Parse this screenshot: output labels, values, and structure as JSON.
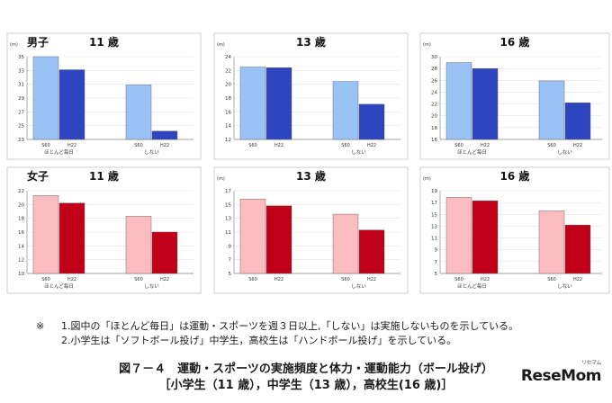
{
  "chart_data": [
    {
      "type": "bar",
      "title": "男子",
      "subtitle": "11 歳",
      "unit": "(m)",
      "yticks": [
        23,
        25,
        27,
        29,
        31,
        33,
        35
      ],
      "ylim": [
        23,
        35
      ],
      "groups": [
        {
          "label": "ほとんど毎日",
          "bars": [
            {
              "name": "S60",
              "value": 35.0
            },
            {
              "name": "H22",
              "value": 33.1
            }
          ]
        },
        {
          "label": "しない",
          "bars": [
            {
              "name": "S60",
              "value": 30.9
            },
            {
              "name": "H22",
              "value": 24.2
            }
          ]
        }
      ],
      "colors": [
        "#99c3f5",
        "#2d46c0"
      ]
    },
    {
      "type": "bar",
      "title": "",
      "subtitle": "13 歳",
      "unit": "(m)",
      "yticks": [
        12,
        14,
        16,
        18,
        20,
        22,
        24
      ],
      "ylim": [
        12,
        24
      ],
      "groups": [
        {
          "label": "",
          "bars": [
            {
              "name": "S60",
              "value": 22.5
            },
            {
              "name": "H22",
              "value": 22.4
            }
          ]
        },
        {
          "label": "しない",
          "bars": [
            {
              "name": "S60",
              "value": 20.4
            },
            {
              "name": "H22",
              "value": 17.1
            }
          ]
        }
      ],
      "colors": [
        "#99c3f5",
        "#2d46c0"
      ]
    },
    {
      "type": "bar",
      "title": "",
      "subtitle": "16 歳",
      "unit": "(m)",
      "yticks": [
        16,
        18,
        20,
        22,
        24,
        26,
        28,
        30
      ],
      "ylim": [
        16,
        30
      ],
      "groups": [
        {
          "label": "ほとんど毎日",
          "bars": [
            {
              "name": "S60",
              "value": 29.0
            },
            {
              "name": "H22",
              "value": 28.0
            }
          ]
        },
        {
          "label": "しない",
          "bars": [
            {
              "name": "S60",
              "value": 25.9
            },
            {
              "name": "H22",
              "value": 22.2
            }
          ]
        }
      ],
      "colors": [
        "#99c3f5",
        "#2d46c0"
      ]
    },
    {
      "type": "bar",
      "title": "女子",
      "subtitle": "11 歳",
      "unit": "",
      "yticks": [
        10,
        12,
        14,
        16,
        18,
        20,
        22
      ],
      "ylim": [
        10,
        22
      ],
      "groups": [
        {
          "label": "ほとんど毎日",
          "bars": [
            {
              "name": "S60",
              "value": 21.3
            },
            {
              "name": "H22",
              "value": 20.2
            }
          ]
        },
        {
          "label": "しない",
          "bars": [
            {
              "name": "S60",
              "value": 18.3
            },
            {
              "name": "H22",
              "value": 16.0
            }
          ]
        }
      ],
      "colors": [
        "#fbbcc0",
        "#c00018"
      ]
    },
    {
      "type": "bar",
      "title": "",
      "subtitle": "13 歳",
      "unit": "(m)",
      "yticks": [
        5,
        7,
        9,
        11,
        13,
        15,
        17
      ],
      "ylim": [
        5,
        17
      ],
      "groups": [
        {
          "label": "",
          "bars": [
            {
              "name": "S60",
              "value": 15.8
            },
            {
              "name": "H22",
              "value": 14.8
            }
          ]
        },
        {
          "label": "しない",
          "bars": [
            {
              "name": "S60",
              "value": 13.6
            },
            {
              "name": "H22",
              "value": 11.3
            }
          ]
        }
      ],
      "colors": [
        "#fbbcc0",
        "#c00018"
      ]
    },
    {
      "type": "bar",
      "title": "",
      "subtitle": "16 歳",
      "unit": "(m)",
      "yticks": [
        5,
        7,
        9,
        11,
        13,
        15,
        17,
        19
      ],
      "ylim": [
        5,
        19
      ],
      "groups": [
        {
          "label": "ほとんど毎日",
          "bars": [
            {
              "name": "S60",
              "value": 17.9
            },
            {
              "name": "H22",
              "value": 17.3
            }
          ]
        },
        {
          "label": "しない",
          "bars": [
            {
              "name": "S60",
              "value": 15.6
            },
            {
              "name": "H22",
              "value": 13.2
            }
          ]
        }
      ],
      "colors": [
        "#fbbcc0",
        "#c00018"
      ]
    }
  ],
  "notes": {
    "mark": "※",
    "line1": "1.図中の「ほとんど毎日」は運動・スポーツを週３日以上,「しない」は実施しないものを示している。",
    "line2": "2.小学生は「ソフトボール投げ」中学生，高校生は「ハンドボール投げ」を示している。"
  },
  "caption": {
    "line1": "図７－４　運動・スポーツの実施頻度と体力・運動能力（ボール投げ）",
    "line2": "［小学生（11 歳），中学生（13 歳），高校生(16 歳)］"
  },
  "logo": {
    "text": "ReseMom",
    "kana": "リセマム"
  }
}
